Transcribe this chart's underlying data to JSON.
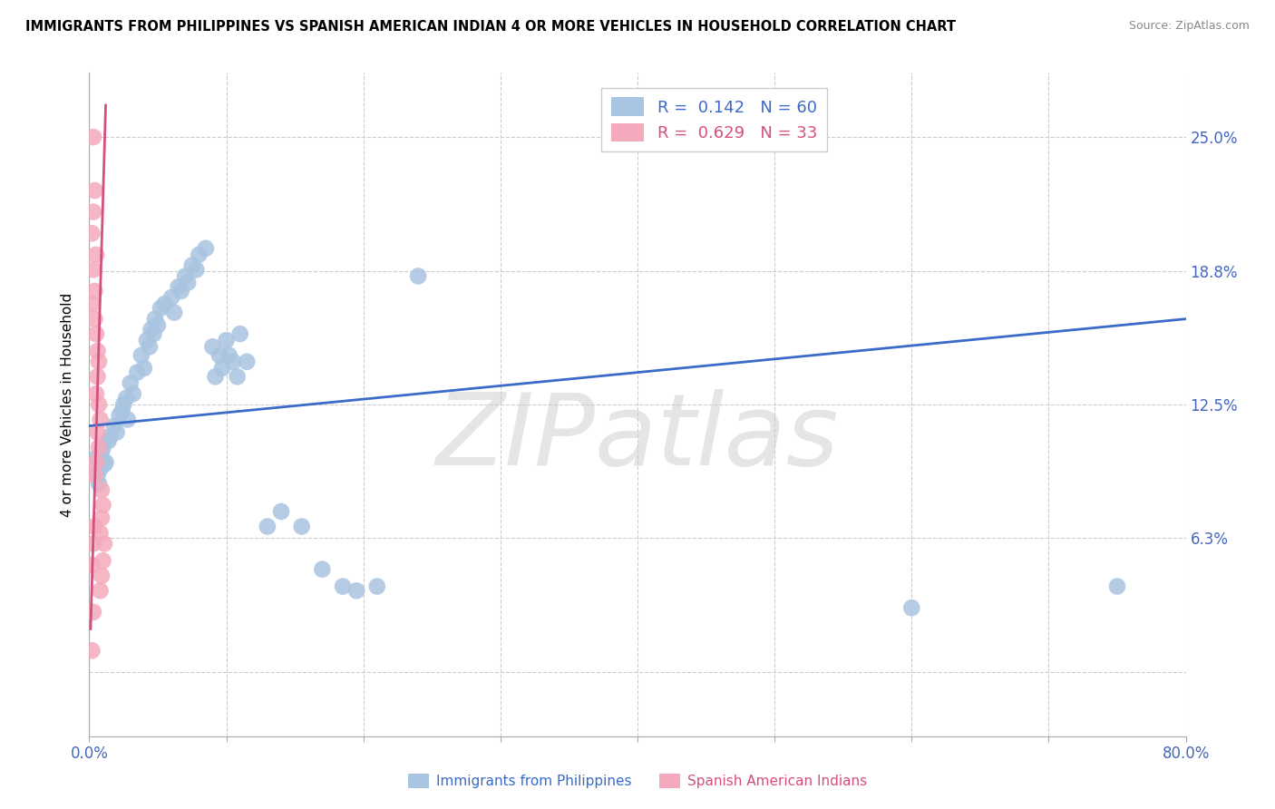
{
  "title": "IMMIGRANTS FROM PHILIPPINES VS SPANISH AMERICAN INDIAN 4 OR MORE VEHICLES IN HOUSEHOLD CORRELATION CHART",
  "source": "Source: ZipAtlas.com",
  "ylabel": "4 or more Vehicles in Household",
  "legend_label1": "Immigrants from Philippines",
  "legend_label2": "Spanish American Indians",
  "R1": 0.142,
  "N1": 60,
  "R2": 0.629,
  "N2": 33,
  "xlim": [
    0.0,
    0.8
  ],
  "ylim": [
    -0.03,
    0.28
  ],
  "yticks": [
    0.0,
    0.0625,
    0.125,
    0.1875,
    0.25
  ],
  "ytick_labels": [
    "",
    "6.3%",
    "12.5%",
    "18.8%",
    "25.0%"
  ],
  "color_blue": "#A8C4E0",
  "color_pink": "#F4AABC",
  "color_line_blue": "#3A6BC8",
  "color_line_pink": "#D45080",
  "watermark": "ZIPatlas",
  "blue_x": [
    0.005,
    0.008,
    0.01,
    0.012,
    0.015,
    0.006,
    0.009,
    0.011,
    0.014,
    0.007,
    0.018,
    0.022,
    0.025,
    0.028,
    0.032,
    0.02,
    0.024,
    0.027,
    0.03,
    0.035,
    0.038,
    0.042,
    0.045,
    0.048,
    0.052,
    0.04,
    0.044,
    0.047,
    0.05,
    0.055,
    0.06,
    0.065,
    0.07,
    0.075,
    0.08,
    0.062,
    0.067,
    0.072,
    0.078,
    0.085,
    0.09,
    0.095,
    0.1,
    0.105,
    0.11,
    0.092,
    0.097,
    0.102,
    0.108,
    0.115,
    0.13,
    0.14,
    0.155,
    0.17,
    0.185,
    0.195,
    0.21,
    0.24,
    0.6,
    0.75
  ],
  "blue_y": [
    0.1,
    0.095,
    0.105,
    0.098,
    0.11,
    0.092,
    0.103,
    0.097,
    0.108,
    0.088,
    0.115,
    0.12,
    0.125,
    0.118,
    0.13,
    0.112,
    0.122,
    0.128,
    0.135,
    0.14,
    0.148,
    0.155,
    0.16,
    0.165,
    0.17,
    0.142,
    0.152,
    0.158,
    0.162,
    0.172,
    0.175,
    0.18,
    0.185,
    0.19,
    0.195,
    0.168,
    0.178,
    0.182,
    0.188,
    0.198,
    0.152,
    0.148,
    0.155,
    0.145,
    0.158,
    0.138,
    0.142,
    0.148,
    0.138,
    0.145,
    0.068,
    0.075,
    0.068,
    0.048,
    0.04,
    0.038,
    0.04,
    0.185,
    0.03,
    0.04
  ],
  "pink_x": [
    0.003,
    0.004,
    0.003,
    0.002,
    0.005,
    0.003,
    0.004,
    0.002,
    0.004,
    0.005,
    0.006,
    0.007,
    0.006,
    0.005,
    0.007,
    0.008,
    0.006,
    0.007,
    0.005,
    0.004,
    0.009,
    0.01,
    0.009,
    0.008,
    0.011,
    0.01,
    0.009,
    0.008,
    0.004,
    0.003,
    0.002,
    0.003,
    0.002
  ],
  "pink_y": [
    0.25,
    0.225,
    0.215,
    0.205,
    0.195,
    0.188,
    0.178,
    0.172,
    0.165,
    0.158,
    0.15,
    0.145,
    0.138,
    0.13,
    0.125,
    0.118,
    0.112,
    0.105,
    0.098,
    0.092,
    0.085,
    0.078,
    0.072,
    0.065,
    0.06,
    0.052,
    0.045,
    0.038,
    0.068,
    0.06,
    0.05,
    0.028,
    0.01
  ],
  "blue_trend_x": [
    0.0,
    0.8
  ],
  "blue_trend_y": [
    0.115,
    0.165
  ],
  "pink_trend_x": [
    0.001,
    0.012
  ],
  "pink_trend_y": [
    0.02,
    0.265
  ]
}
